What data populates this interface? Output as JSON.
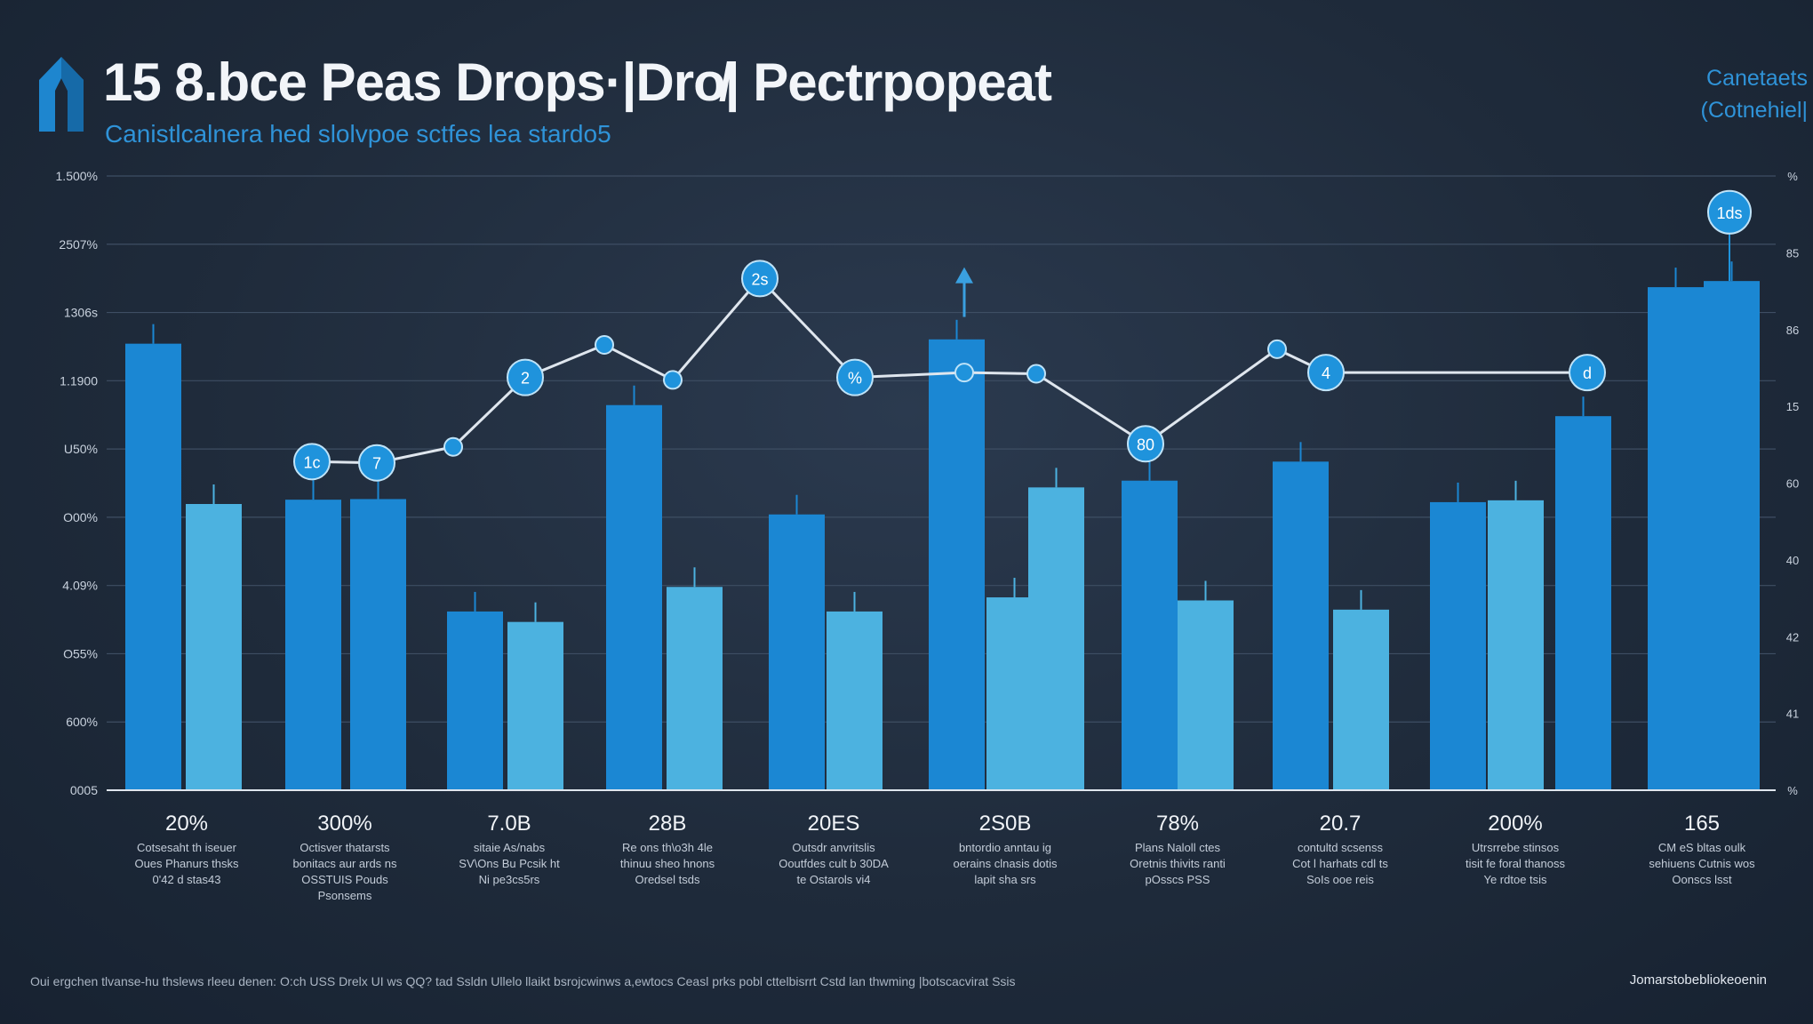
{
  "header": {
    "title": "15 8.bce Peas Drops·|Dro̸| Pectrpopeat",
    "subtitle": "Canistlcalnera hed slolvpoe sctfes lea stardo5",
    "corner": [
      "Canetaets",
      "(Cotnehiel|"
    ]
  },
  "colors": {
    "primary_bar": "#1b87d3",
    "secondary_bar": "#4cb2e0",
    "line": "#dfe6ee",
    "marker": "#1f93dc",
    "background": "#1f2b3b"
  },
  "chart_data": {
    "type": "bar",
    "y_left_ticks": [
      "1.500%",
      "2507%",
      "1306s",
      "1.1900",
      "U50%",
      "O00%",
      "4.09%",
      "O55%",
      "600%",
      "0005"
    ],
    "y_right_ticks": [
      "%",
      "85",
      "86",
      "15",
      "60",
      "40",
      "42",
      "41",
      "%"
    ],
    "ylim": [
      0,
      100
    ],
    "bars": [
      {
        "value": 72.7,
        "tone": "primary"
      },
      {
        "value": 46.6,
        "tone": "secondary"
      },
      {
        "value": 47.3,
        "tone": "primary"
      },
      {
        "value": 47.4,
        "tone": "primary"
      },
      {
        "value": 29.1,
        "tone": "primary"
      },
      {
        "value": 27.4,
        "tone": "secondary"
      },
      {
        "value": 62.7,
        "tone": "primary"
      },
      {
        "value": 33.1,
        "tone": "secondary"
      },
      {
        "value": 44.9,
        "tone": "primary"
      },
      {
        "value": 29.1,
        "tone": "secondary"
      },
      {
        "value": 73.4,
        "tone": "primary"
      },
      {
        "value": 31.4,
        "tone": "secondary"
      },
      {
        "value": 49.3,
        "tone": "secondary"
      },
      {
        "value": 50.4,
        "tone": "primary"
      },
      {
        "value": 30.9,
        "tone": "secondary"
      },
      {
        "value": 53.5,
        "tone": "primary"
      },
      {
        "value": 29.4,
        "tone": "secondary"
      },
      {
        "value": 46.9,
        "tone": "primary"
      },
      {
        "value": 47.2,
        "tone": "secondary"
      },
      {
        "value": 60.9,
        "tone": "primary"
      },
      {
        "value": 81.9,
        "tone": "primary"
      },
      {
        "value": 82.9,
        "tone": "primary"
      }
    ],
    "line": {
      "values": [
        53.5,
        53.3,
        55.9,
        67.2,
        72.5,
        66.8,
        83.3,
        67.2,
        68.0,
        67.8,
        56.4,
        71.8,
        68.0,
        68.0
      ],
      "labels": [
        "1c",
        "7",
        "",
        "2",
        "",
        "",
        "2s",
        "%",
        "",
        "",
        "80",
        "",
        "4",
        "d"
      ]
    },
    "top_marker": {
      "value": 94.1,
      "label": "1ds"
    },
    "arrow_marker": {
      "value": 78.5
    },
    "category_values": [
      "20%",
      "300%",
      "7.0B",
      "28B",
      "20ES",
      "2S0B",
      "78%",
      "20.7",
      "200%",
      "165"
    ],
    "category_descriptions": [
      [
        "Cotsesaht th iseuer",
        "Oues Phanurs thsks",
        "0'42 d stas43"
      ],
      [
        "Octisver thatarsts",
        "bonitacs aur ards ns",
        "OSSTUIS Pouds",
        "Psonsems"
      ],
      [
        "sitaie As/nabs",
        "SV\\Ons Bu Pcsik ht",
        "Ni pe3cs5rs"
      ],
      [
        "Re ons th\\o3h 4le",
        "thinuu sheo hnons",
        "Oredsel tsds"
      ],
      [
        "Outsdr anvritslis",
        "Ooutfdes cult b 30DA",
        "te Ostarols vi4"
      ],
      [
        "bntordio anntau ig",
        "oerains clnasis dotis",
        "lapit sha srs"
      ],
      [
        "Plans Naloll ctes",
        "Oretnis thivits ranti",
        "pOsscs PSS"
      ],
      [
        "contultd scsenss",
        "Cot l harhats cdl ts",
        "SoIs ooe reis"
      ],
      [
        "Utrsrrebe stinsos",
        "tisit fe foral thanoss",
        "Ye rdtoe tsis"
      ],
      [
        "CM eS bltas oulk",
        "sehiuens Cutnis wos",
        "Oonscs lsst"
      ]
    ]
  },
  "footnote": "Oui ergchen tlvanse-hu thslews rleeu denen: O:ch USS Drelx UI ws QQ? tad Ssldn Ullelo llaikt bsrojcwinws a,ewtocs Ceasl prks pobl cttelbisrrt Cstd lan thwming |botscacvirat Ssis",
  "source_note": "Jomarstobebliokeoenin"
}
